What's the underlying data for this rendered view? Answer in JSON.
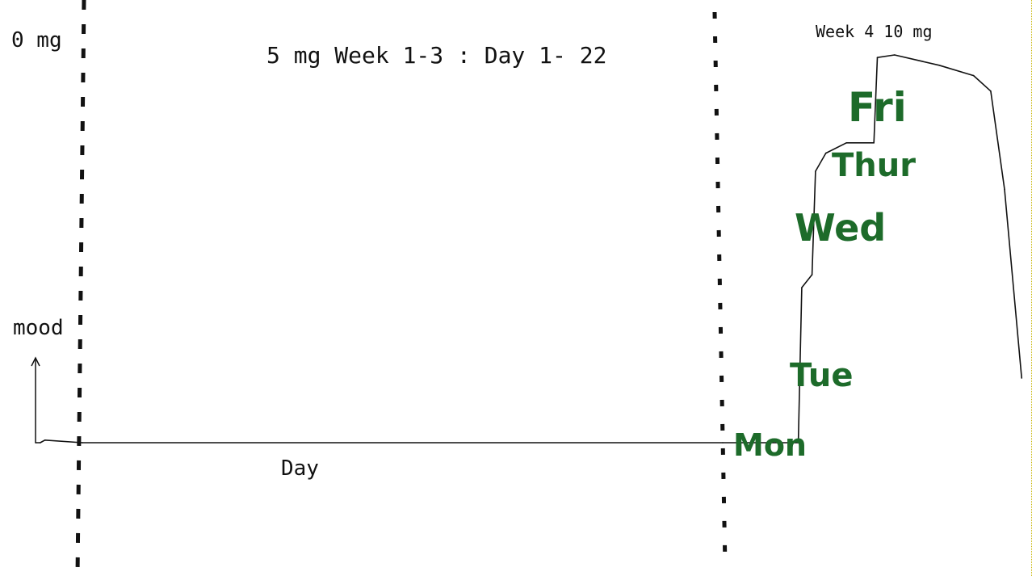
{
  "chart_data": {
    "type": "line",
    "annotations": {
      "zero_dose": "0 mg",
      "phase1": "5 mg   Week 1-3 : Day 1- 22",
      "phase2": "Week   4   10 mg"
    },
    "xlabel": "Day",
    "ylabel": "mood",
    "day_labels": [
      "Mon",
      "Tue",
      "Wed",
      "Thur",
      "Fri"
    ],
    "series": [
      {
        "values": [
          [
            0,
            0
          ],
          [
            0.15,
            0
          ],
          [
            0.3,
            0.01
          ],
          [
            1.5,
            0
          ],
          [
            22,
            0
          ],
          [
            24.2,
            0
          ],
          [
            24.3,
            0.6
          ],
          [
            24.6,
            0.65
          ],
          [
            24.7,
            1.05
          ],
          [
            25.0,
            1.12
          ],
          [
            25.6,
            1.16
          ],
          [
            26.4,
            1.16
          ],
          [
            26.5,
            1.49
          ],
          [
            27.0,
            1.5
          ],
          [
            28.3,
            1.46
          ],
          [
            29.3,
            1.42
          ],
          [
            29.8,
            1.36
          ],
          [
            30.2,
            0.98
          ],
          [
            30.7,
            0.25
          ]
        ]
      }
    ],
    "colors": {
      "line": "#111111",
      "dividers": "#111111",
      "day_labels": "#1d6b2a"
    },
    "grid": false,
    "legend": "none"
  }
}
